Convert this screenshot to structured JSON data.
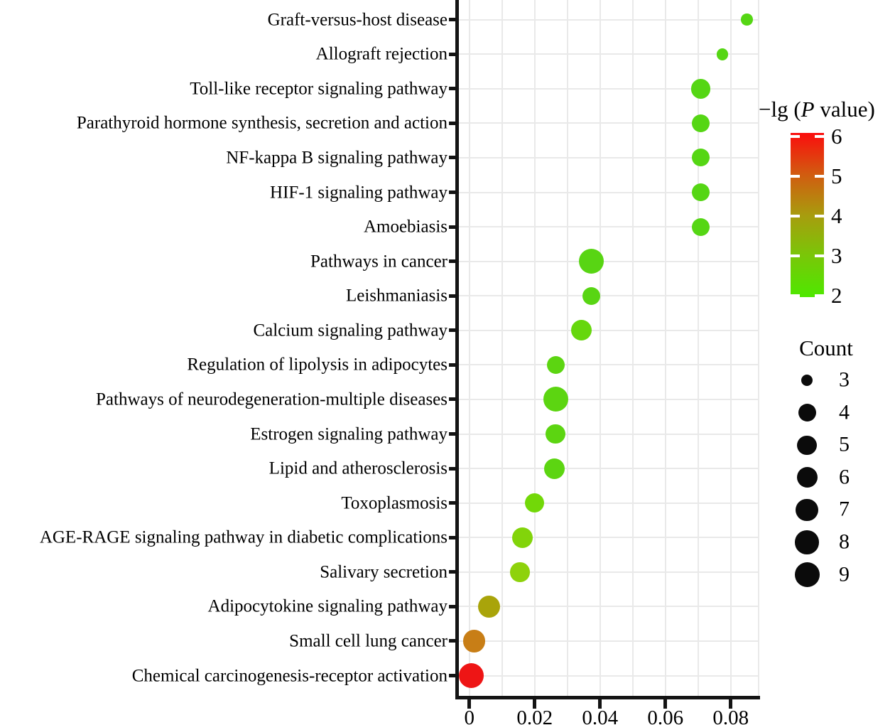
{
  "chart_data": {
    "type": "scatter",
    "title": "",
    "xlabel": "",
    "ylabel": "",
    "grid": true,
    "legend_position": "right",
    "x_axis": {
      "ticks": [
        "0",
        "0.02",
        "0.04",
        "0.06",
        "0.08"
      ],
      "tick_values": [
        0,
        0.02,
        0.04,
        0.06,
        0.08
      ],
      "range": [
        0,
        0.089
      ],
      "minor_grid_step": 0.01
    },
    "points": [
      {
        "pathway": "Graft-versus-host disease",
        "x": 0.085,
        "count": 3,
        "neg_lg_p": 2.2,
        "color": "#55d614"
      },
      {
        "pathway": "Allograft rejection",
        "x": 0.0775,
        "count": 3,
        "neg_lg_p": 2.2,
        "color": "#55d614"
      },
      {
        "pathway": "Toll-like receptor signaling pathway",
        "x": 0.0708,
        "count": 5,
        "neg_lg_p": 2.3,
        "color": "#55d614"
      },
      {
        "pathway": "Parathyroid hormone synthesis, secretion and action",
        "x": 0.0708,
        "count": 4,
        "neg_lg_p": 2.3,
        "color": "#55d614"
      },
      {
        "pathway": "NF-kappa B signaling pathway",
        "x": 0.0708,
        "count": 4,
        "neg_lg_p": 2.3,
        "color": "#55d614"
      },
      {
        "pathway": "HIF-1 signaling pathway",
        "x": 0.0708,
        "count": 4,
        "neg_lg_p": 2.3,
        "color": "#55d614"
      },
      {
        "pathway": "Amoebiasis",
        "x": 0.0708,
        "count": 4,
        "neg_lg_p": 2.3,
        "color": "#55d614"
      },
      {
        "pathway": "Pathways in cancer",
        "x": 0.0374,
        "count": 9,
        "neg_lg_p": 2.4,
        "color": "#58d513"
      },
      {
        "pathway": "Leishmaniasis",
        "x": 0.0374,
        "count": 4,
        "neg_lg_p": 2.4,
        "color": "#58d513"
      },
      {
        "pathway": "Calcium signaling pathway",
        "x": 0.0342,
        "count": 6,
        "neg_lg_p": 2.5,
        "color": "#66d70d"
      },
      {
        "pathway": "Regulation of lipolysis in adipocytes",
        "x": 0.0264,
        "count": 4,
        "neg_lg_p": 2.4,
        "color": "#5cd511"
      },
      {
        "pathway": "Pathways of neurodegeneration-multiple diseases",
        "x": 0.0264,
        "count": 9,
        "neg_lg_p": 2.4,
        "color": "#5cd511"
      },
      {
        "pathway": "Estrogen signaling pathway",
        "x": 0.0264,
        "count": 5,
        "neg_lg_p": 2.4,
        "color": "#5cd511"
      },
      {
        "pathway": "Lipid and atherosclerosis",
        "x": 0.0261,
        "count": 6,
        "neg_lg_p": 2.4,
        "color": "#5cd511"
      },
      {
        "pathway": "Toxoplasmosis",
        "x": 0.02,
        "count": 5,
        "neg_lg_p": 2.6,
        "color": "#72d808"
      },
      {
        "pathway": "AGE-RAGE signaling pathway in diabetic complications",
        "x": 0.0162,
        "count": 6,
        "neg_lg_p": 2.8,
        "color": "#82d40a"
      },
      {
        "pathway": "Salivary secretion",
        "x": 0.0155,
        "count": 5,
        "neg_lg_p": 3.0,
        "color": "#8ed20c"
      },
      {
        "pathway": "Adipocytokine signaling pathway",
        "x": 0.006,
        "count": 7,
        "neg_lg_p": 4.0,
        "color": "#a9a40a"
      },
      {
        "pathway": "Small cell lung cancer",
        "x": 0.0015,
        "count": 7,
        "neg_lg_p": 4.9,
        "color": "#c87e16"
      },
      {
        "pathway": "Chemical carcinogenesis-receptor activation",
        "x": 0.0005,
        "count": 9,
        "neg_lg_p": 6.0,
        "color": "#ee1515"
      }
    ],
    "color_legend": {
      "title_prefix": "−lg (",
      "title_italic": "P",
      "title_suffix": " value)",
      "ticks": [
        "6",
        "5",
        "4",
        "3",
        "2"
      ],
      "top_value": 6,
      "bottom_value": 2,
      "gradient_stops": [
        "#fb0d0d",
        "#d25b10",
        "#a89c0e",
        "#79c708",
        "#4ee800"
      ]
    },
    "size_legend": {
      "title": "Count",
      "entries": [
        "3",
        "4",
        "5",
        "6",
        "7",
        "8",
        "9"
      ]
    }
  }
}
